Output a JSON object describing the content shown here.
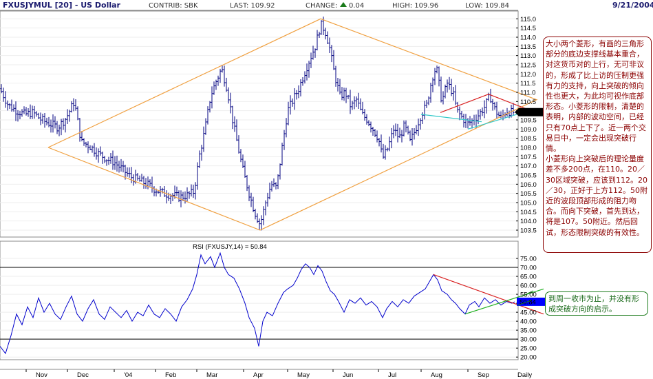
{
  "header": {
    "symbol": "FXUSJYMUL [20] - US Dollar",
    "contrib": "CONTRIB: SBK",
    "last": "LAST: 109.92",
    "change_label": "CHANGE:",
    "change_value": "0.04",
    "high": "HIGH: 109.96",
    "low": "LOW: 109.84",
    "date": "9/21/2004"
  },
  "colors": {
    "price": "#000080",
    "rsi": "#0000cc",
    "big_diamond": "#f0a040",
    "small_upper": "#d82020",
    "small_lower": "#30c8c8",
    "rsi_upper": "#d82020",
    "rsi_lower": "#20b020",
    "last_tag": "#0000ff"
  },
  "annotations": {
    "main_p1": "大小两个菱形，有画的三角形部分的底边支撑线基本重合，对这货币对的上行，无可非议的，形成了比上访的压制更强有力的支持，向上突破的倾向性也更大，为此均可视作底部形态。小菱形的限制，清楚的表明，内部的波动空间，已经只有70点上下了。近一两个交易日中，一定会出现突破行情。",
    "main_p2": "小菱形向上突破后的理论量度差不多200点，在110。20／30区域突破，应该到112。20／30，正好于上方112。50附近的波段顶部形成的阻力吻合。而向下突破，首先到达，将是107。50附近。然后回试，形态限制突破的有效性。",
    "rsi_note": "到周一收市为止，并没有形成突破方向的启示。"
  },
  "chart_data": [
    {
      "type": "ohlc",
      "title": "FXUSJYMUL [20] - US Dollar",
      "x_tick_labels": [
        "Nov",
        "Dec",
        "'04",
        "Feb",
        "Mar",
        "Apr",
        "May",
        "Jun",
        "Jul",
        "Aug",
        "Sep",
        "Daily"
      ],
      "ylim": [
        103.2,
        115.2
      ],
      "y_ticks": [
        103.5,
        104.0,
        104.5,
        105.0,
        105.5,
        106.0,
        106.5,
        107.0,
        107.5,
        108.0,
        108.5,
        109.0,
        109.5,
        110.0,
        110.5,
        111.0,
        111.5,
        112.0,
        112.5,
        113.0,
        113.5,
        114.0,
        114.5,
        115.0
      ],
      "last_value": "109.92",
      "series": [
        {
          "path_closes": [
            [
              0,
              111.2
            ],
            [
              12,
              110.3
            ],
            [
              24,
              110.0
            ],
            [
              36,
              109.8
            ],
            [
              48,
              109.9
            ],
            [
              60,
              109.5
            ],
            [
              72,
              109.3
            ],
            [
              84,
              109.1
            ],
            [
              96,
              109.6
            ],
            [
              108,
              110.5
            ],
            [
              118,
              108.3
            ],
            [
              130,
              108.1
            ],
            [
              142,
              107.7
            ],
            [
              154,
              107.4
            ],
            [
              166,
              107.2
            ],
            [
              178,
              106.8
            ],
            [
              190,
              106.4
            ],
            [
              202,
              106.2
            ],
            [
              214,
              106.0
            ],
            [
              226,
              105.7
            ],
            [
              238,
              105.5
            ],
            [
              250,
              105.4
            ],
            [
              262,
              105.3
            ],
            [
              272,
              105.4
            ],
            [
              282,
              105.6
            ],
            [
              290,
              107.6
            ],
            [
              298,
              109.0
            ],
            [
              306,
              110.8
            ],
            [
              314,
              111.6
            ],
            [
              322,
              112.3
            ],
            [
              330,
              111.2
            ],
            [
              338,
              109.5
            ],
            [
              346,
              108.0
            ],
            [
              354,
              106.6
            ],
            [
              362,
              105.5
            ],
            [
              370,
              104.5
            ],
            [
              378,
              103.8
            ],
            [
              386,
              105.0
            ],
            [
              394,
              106.0
            ],
            [
              402,
              105.8
            ],
            [
              410,
              108.0
            ],
            [
              418,
              110.0
            ],
            [
              426,
              110.6
            ],
            [
              434,
              111.2
            ],
            [
              442,
              112.0
            ],
            [
              450,
              112.8
            ],
            [
              458,
              113.5
            ],
            [
              466,
              114.7
            ],
            [
              472,
              114.4
            ],
            [
              478,
              113.6
            ],
            [
              486,
              112.0
            ],
            [
              494,
              110.8
            ],
            [
              502,
              111.0
            ],
            [
              510,
              110.2
            ],
            [
              518,
              110.6
            ],
            [
              526,
              109.8
            ],
            [
              534,
              109.5
            ],
            [
              542,
              109.0
            ],
            [
              550,
              108.5
            ],
            [
              556,
              107.4
            ],
            [
              564,
              108.0
            ],
            [
              572,
              109.0
            ],
            [
              580,
              108.5
            ],
            [
              588,
              109.2
            ],
            [
              596,
              108.3
            ],
            [
              604,
              109.0
            ],
            [
              612,
              109.8
            ],
            [
              620,
              110.3
            ],
            [
              628,
              111.8
            ],
            [
              634,
              112.4
            ],
            [
              642,
              110.5
            ],
            [
              650,
              111.5
            ],
            [
              658,
              111.0
            ],
            [
              664,
              110.0
            ],
            [
              672,
              109.6
            ],
            [
              680,
              109.3
            ],
            [
              688,
              109.5
            ],
            [
              696,
              109.8
            ],
            [
              704,
              110.2
            ],
            [
              712,
              110.8
            ],
            [
              720,
              110.0
            ],
            [
              728,
              109.6
            ],
            [
              736,
              110.0
            ],
            [
              744,
              109.9
            ],
            [
              748,
              109.92
            ]
          ]
        }
      ],
      "trendlines": [
        {
          "name": "big-diamond",
          "points": [
            [
              70,
              108.0
            ],
            [
              466,
              115.0
            ],
            [
              780,
              110.6
            ],
            [
              378,
              103.5
            ],
            [
              70,
              108.0
            ]
          ]
        },
        {
          "name": "small-upper-left",
          "points": [
            [
              640,
              109.9
            ],
            [
              710,
              110.9
            ]
          ]
        },
        {
          "name": "small-upper-right",
          "points": [
            [
              710,
              110.9
            ],
            [
              765,
              110.1
            ]
          ]
        },
        {
          "name": "small-lower-left",
          "points": [
            [
              612,
              109.8
            ],
            [
              700,
              109.4
            ]
          ]
        },
        {
          "name": "small-lower-right",
          "points": [
            [
              680,
              109.0
            ],
            [
              760,
              109.9
            ]
          ]
        }
      ]
    },
    {
      "type": "line",
      "title": "RSI (FXUSJY,14) = 50.84",
      "x_tick_labels": [
        "Nov",
        "Dec",
        "'04",
        "Feb",
        "Mar",
        "Apr",
        "May",
        "Jun",
        "Jul",
        "Aug",
        "Sep",
        "Daily"
      ],
      "ylim": [
        17,
        80
      ],
      "y_ticks": [
        20.0,
        25.0,
        30.0,
        35.0,
        40.0,
        45.0,
        50.0,
        55.0,
        60.0,
        65.0,
        70.0,
        75.0
      ],
      "hlines": [
        30,
        70
      ],
      "last_value": "50.84",
      "series": [
        {
          "name": "RSI (FXUSJY,14)",
          "values": [
            [
              0,
              26
            ],
            [
              8,
              22
            ],
            [
              16,
              32
            ],
            [
              24,
              44
            ],
            [
              32,
              38
            ],
            [
              40,
              48
            ],
            [
              48,
              42
            ],
            [
              56,
              53
            ],
            [
              64,
              45
            ],
            [
              72,
              50
            ],
            [
              80,
              44
            ],
            [
              88,
              41
            ],
            [
              96,
              48
            ],
            [
              104,
              54
            ],
            [
              112,
              44
            ],
            [
              120,
              40
            ],
            [
              128,
              47
            ],
            [
              136,
              52
            ],
            [
              144,
              44
            ],
            [
              152,
              41
            ],
            [
              160,
              48
            ],
            [
              168,
              45
            ],
            [
              176,
              42
            ],
            [
              184,
              46
            ],
            [
              192,
              40
            ],
            [
              200,
              45
            ],
            [
              208,
              43
            ],
            [
              216,
              49
            ],
            [
              224,
              44
            ],
            [
              232,
              42
            ],
            [
              240,
              47
            ],
            [
              248,
              44
            ],
            [
              256,
              40
            ],
            [
              264,
              48
            ],
            [
              272,
              52
            ],
            [
              280,
              58
            ],
            [
              286,
              66
            ],
            [
              292,
              77
            ],
            [
              298,
              72
            ],
            [
              306,
              76
            ],
            [
              312,
              70
            ],
            [
              320,
              78
            ],
            [
              326,
              70
            ],
            [
              332,
              66
            ],
            [
              340,
              64
            ],
            [
              348,
              58
            ],
            [
              356,
              50
            ],
            [
              362,
              42
            ],
            [
              370,
              36
            ],
            [
              376,
              26
            ],
            [
              382,
              40
            ],
            [
              388,
              45
            ],
            [
              396,
              43
            ],
            [
              404,
              50
            ],
            [
              412,
              56
            ],
            [
              418,
              58
            ],
            [
              426,
              60
            ],
            [
              432,
              64
            ],
            [
              438,
              69
            ],
            [
              444,
              72
            ],
            [
              450,
              70
            ],
            [
              456,
              66
            ],
            [
              462,
              71
            ],
            [
              468,
              68
            ],
            [
              474,
              62
            ],
            [
              480,
              57
            ],
            [
              486,
              55
            ],
            [
              492,
              51
            ],
            [
              500,
              45
            ],
            [
              508,
              52
            ],
            [
              516,
              50
            ],
            [
              524,
              53
            ],
            [
              532,
              49
            ],
            [
              540,
              51
            ],
            [
              548,
              48
            ],
            [
              556,
              42
            ],
            [
              562,
              47
            ],
            [
              570,
              51
            ],
            [
              578,
              48
            ],
            [
              586,
              52
            ],
            [
              594,
              50
            ],
            [
              602,
              54
            ],
            [
              610,
              56
            ],
            [
              618,
              58
            ],
            [
              624,
              62
            ],
            [
              630,
              66
            ],
            [
              636,
              63
            ],
            [
              642,
              57
            ],
            [
              650,
              55
            ],
            [
              656,
              52
            ],
            [
              662,
              50
            ],
            [
              668,
              47
            ],
            [
              676,
              44
            ],
            [
              682,
              49
            ],
            [
              690,
              51
            ],
            [
              696,
              48
            ],
            [
              704,
              53
            ],
            [
              712,
              50
            ],
            [
              720,
              52
            ],
            [
              728,
              49
            ],
            [
              736,
              51
            ],
            [
              744,
              50
            ],
            [
              748,
              50.84
            ]
          ]
        }
      ],
      "trendlines": [
        {
          "name": "rsi-upper",
          "points": [
            [
              630,
              66
            ],
            [
              790,
              44
            ]
          ]
        },
        {
          "name": "rsi-lower",
          "points": [
            [
              676,
              44
            ],
            [
              790,
              58
            ]
          ]
        }
      ]
    }
  ]
}
